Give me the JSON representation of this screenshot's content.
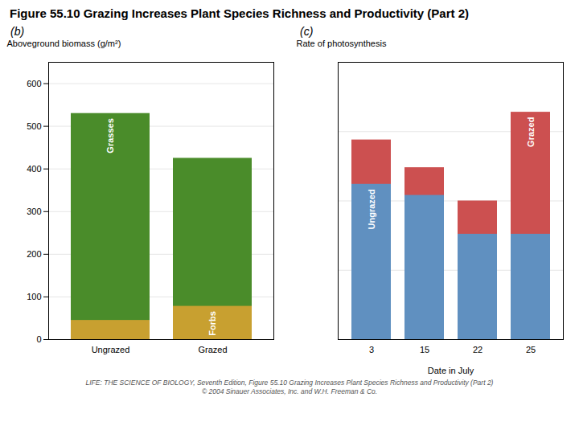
{
  "title": "Figure 55.10  Grazing Increases Plant Species Richness and Productivity (Part 2)",
  "annotations": [
    "LIFE: THE SCIENCE OF BIOLOGY, Seventh Edition, Figure 55.10 Grazing Increases Plant Species Richness and Productivity (Part 2)",
    "© 2004 Sinauer Associates, Inc. and W.H. Freeman & Co."
  ],
  "chart_data": [
    {
      "type": "bar",
      "title": "(b)",
      "categories": [
        "Ungrazed",
        "Grazed"
      ],
      "series": [
        {
          "name": "Grasses",
          "color": "#4a8c2a",
          "values": [
            530,
            425
          ]
        },
        {
          "name": "Forbs",
          "color": "#c8a030",
          "values": [
            45,
            78
          ]
        }
      ],
      "ylabel": "Aboveground biomass (g/m²)",
      "ylim": [
        0,
        650
      ],
      "yticks": [
        0,
        100,
        200,
        300,
        400,
        500,
        600
      ],
      "grid": true
    },
    {
      "type": "bar",
      "title": "(c)",
      "categories": [
        "3",
        "15",
        "22",
        "25"
      ],
      "series": [
        {
          "name": "Grazed",
          "color": "#cc5050",
          "values": [
            0.72,
            0.62,
            0.5,
            0.82
          ]
        },
        {
          "name": "Ungrazed",
          "color": "#6090c0",
          "values": [
            0.56,
            0.52,
            0.38,
            0.38
          ]
        }
      ],
      "xlabel": "Date in July",
      "ylabel": "Rate of photosynthesis",
      "ylim": [
        0,
        1.0
      ],
      "yticks": [
        0.25,
        0.5,
        0.75
      ],
      "grid": true,
      "tick_labels": "x"
    }
  ]
}
